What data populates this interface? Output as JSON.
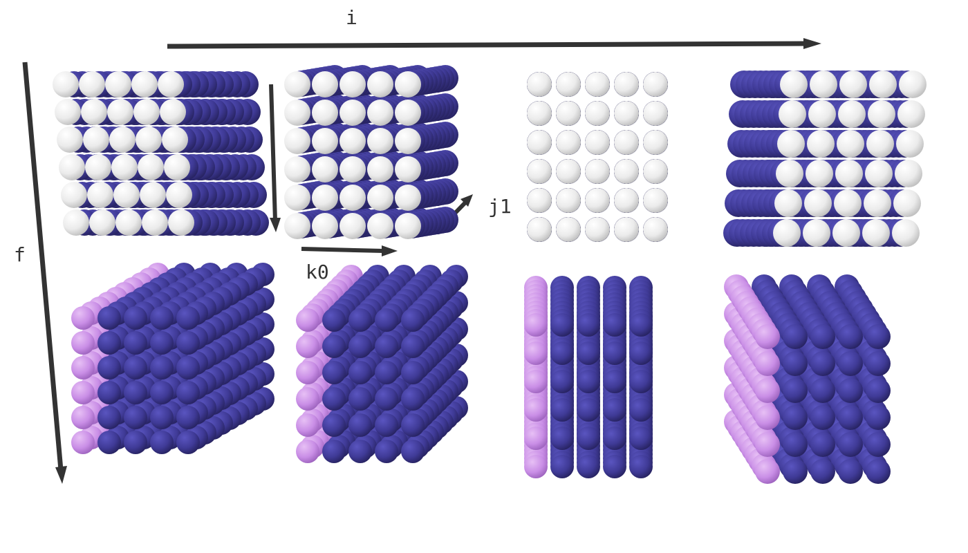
{
  "axes": {
    "i": "i",
    "f": "f",
    "j": "j",
    "j1": "j1",
    "k0": "k0"
  },
  "colors": {
    "arrow": "#333333",
    "ball_white": "#f2f2f2",
    "ball_blue": "#3f3a96",
    "ball_blue_dark": "#1d1a55",
    "ball_pink": "#c98ee6"
  },
  "grid": {
    "rows": 6,
    "cols": 5,
    "depth": 10
  },
  "panels": [
    {
      "row": "top",
      "front": "white",
      "variant": "side-left"
    },
    {
      "row": "top",
      "front": "white",
      "variant": "front"
    },
    {
      "row": "top",
      "front": "white",
      "variant": "columns"
    },
    {
      "row": "top",
      "front": "white",
      "variant": "side-right"
    },
    {
      "row": "bottom",
      "front": "blue",
      "edge": "pink",
      "variant": "side-left"
    },
    {
      "row": "bottom",
      "front": "blue",
      "edge": "pink",
      "variant": "front"
    },
    {
      "row": "bottom",
      "front": "blue",
      "edge": "pink",
      "variant": "columns"
    },
    {
      "row": "bottom",
      "front": "blue",
      "edge": "pink",
      "variant": "side-right"
    }
  ]
}
